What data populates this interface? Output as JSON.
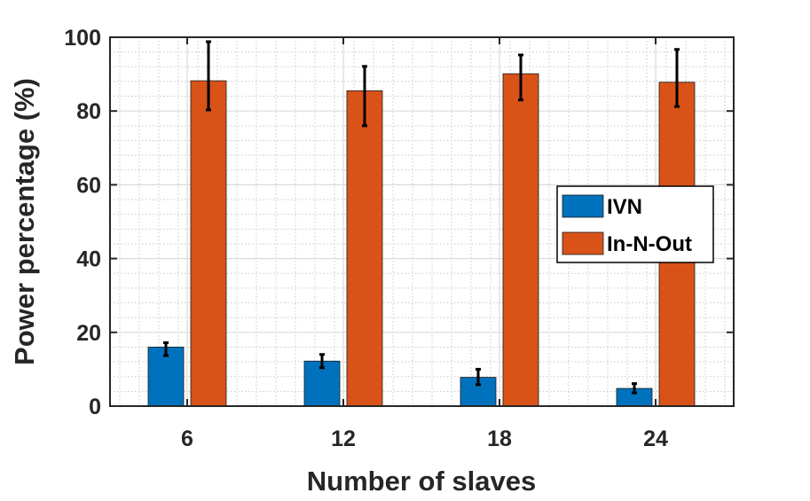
{
  "chart_data": {
    "type": "bar",
    "title": "",
    "xlabel": "Number of slaves",
    "ylabel": "Power percentage (%)",
    "categories": [
      "6",
      "12",
      "18",
      "24"
    ],
    "ylim": [
      0,
      100
    ],
    "yticks": [
      0,
      20,
      40,
      60,
      80,
      100
    ],
    "y_tick_labels": [
      "0",
      "20",
      "40",
      "60",
      "80",
      "100"
    ],
    "grid": "major and minor",
    "legend_position": "right",
    "series": [
      {
        "name": "IVN",
        "color": "#0072BD",
        "values": [
          16,
          12.2,
          7.8,
          4.8
        ],
        "err_low": [
          2.3,
          1.8,
          2.0,
          1.2
        ],
        "err_high": [
          1.2,
          1.8,
          2.2,
          1.3
        ]
      },
      {
        "name": "In-N-Out",
        "color": "#D95319",
        "values": [
          88.2,
          85.5,
          90.1,
          87.8
        ],
        "err_low": [
          7.9,
          9.5,
          7.1,
          6.6
        ],
        "err_high": [
          10.6,
          6.6,
          5.1,
          8.9
        ]
      }
    ]
  }
}
